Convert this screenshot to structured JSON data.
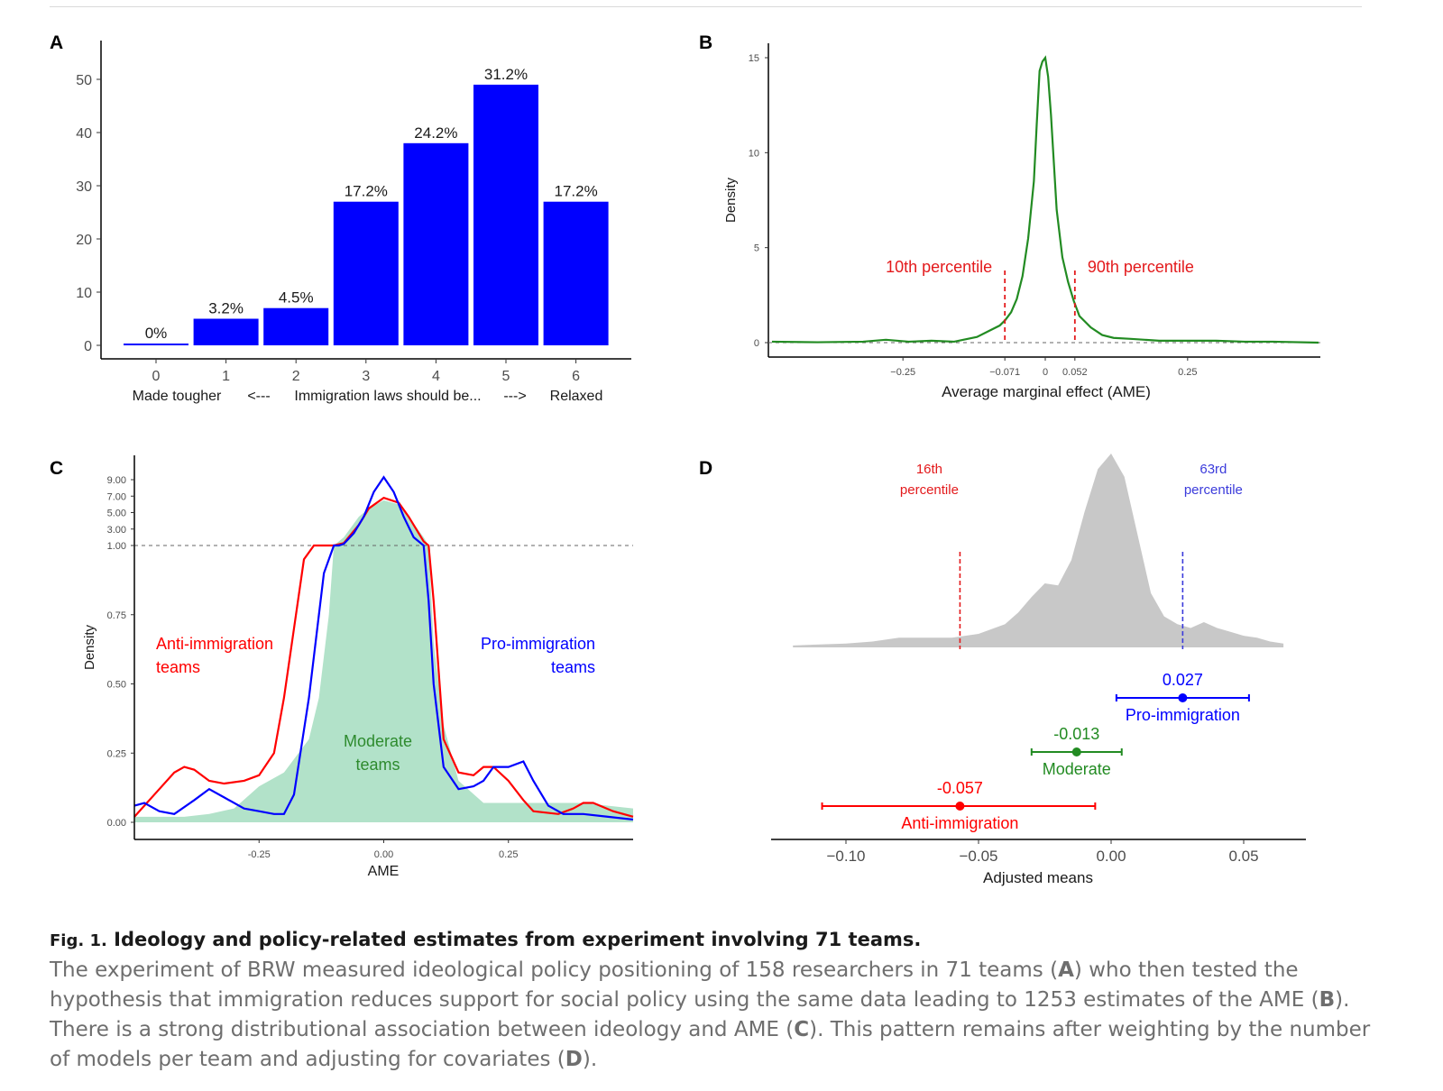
{
  "panels": [
    {
      "letter": "A",
      "chart_data": {
        "type": "bar",
        "categories": [
          "0",
          "1",
          "2",
          "3",
          "4",
          "5",
          "6"
        ],
        "values": [
          0,
          5,
          7,
          27,
          38,
          49,
          27
        ],
        "data_labels": [
          "0%",
          "3.2%",
          "4.5%",
          "17.2%",
          "24.2%",
          "31.2%",
          "17.2%"
        ],
        "bar_color": "#0000ff",
        "ylim": [
          0,
          55
        ],
        "yticks": [
          0,
          10,
          20,
          30,
          40,
          50
        ],
        "xlabel_parts": [
          "Made tougher",
          "<---",
          "Immigration laws should be...",
          "--->",
          "Relaxed"
        ]
      }
    },
    {
      "letter": "B",
      "chart_data": {
        "type": "line",
        "ylabel": "Density",
        "xlabel": "Average marginal effect (AME)",
        "xlim": [
          -0.48,
          0.48
        ],
        "ylim": [
          0,
          15.5
        ],
        "yticks": [
          0,
          5,
          10,
          15
        ],
        "xticks": [
          -0.25,
          -0.071,
          0,
          0.052,
          0.25
        ],
        "xtick_labels": [
          "−0.25",
          "−0.071",
          "0",
          "0.052",
          "0.25"
        ],
        "series": [
          {
            "name": "Density",
            "color": "#228b22",
            "x": [
              -0.48,
              -0.4,
              -0.32,
              -0.28,
              -0.24,
              -0.2,
              -0.16,
              -0.12,
              -0.1,
              -0.08,
              -0.07,
              -0.06,
              -0.05,
              -0.04,
              -0.03,
              -0.02,
              -0.015,
              -0.01,
              -0.005,
              0,
              0.005,
              0.01,
              0.015,
              0.02,
              0.03,
              0.04,
              0.05,
              0.06,
              0.08,
              0.1,
              0.12,
              0.15,
              0.2,
              0.25,
              0.3,
              0.35,
              0.4,
              0.48
            ],
            "y": [
              0.05,
              0.02,
              0.05,
              0.15,
              0.05,
              0.1,
              0.05,
              0.3,
              0.6,
              0.9,
              1.2,
              1.6,
              2.3,
              3.5,
              5.5,
              8.5,
              11.5,
              14.3,
              14.8,
              15.0,
              14.0,
              12.0,
              9.5,
              7.0,
              4.5,
              3.2,
              2.2,
              1.4,
              0.8,
              0.4,
              0.25,
              0.2,
              0.1,
              0.1,
              0.1,
              0.05,
              0.05,
              0.0
            ]
          }
        ],
        "reference_lines": [
          {
            "x": -0.071,
            "label": "10th percentile",
            "color": "#e31a1c"
          },
          {
            "x": 0.052,
            "label": "90th percentile",
            "color": "#e31a1c"
          }
        ]
      }
    },
    {
      "letter": "C",
      "chart_data": {
        "type": "area",
        "ylabel": "Density",
        "xlabel": "AME",
        "xlim": [
          -0.5,
          0.5
        ],
        "xticks": [
          -0.25,
          0,
          0.25
        ],
        "xtick_labels": [
          "-0.25",
          "0.00",
          "0.25"
        ],
        "yticks": [
          0,
          0.25,
          0.5,
          0.75,
          1,
          3,
          5,
          7,
          9
        ],
        "ytick_labels": [
          "0.00",
          "0.25",
          "0.50",
          "0.75",
          "1.00",
          "3.00",
          "5.00",
          "7.00",
          "9.00"
        ],
        "axis_break_at": 1,
        "series": [
          {
            "name": "Moderate teams",
            "color": "#b2e2c9",
            "x": [
              -0.5,
              -0.45,
              -0.4,
              -0.35,
              -0.3,
              -0.25,
              -0.2,
              -0.15,
              -0.13,
              -0.11,
              -0.1,
              -0.08,
              -0.05,
              -0.03,
              0,
              0.03,
              0.05,
              0.08,
              0.09,
              0.1,
              0.12,
              0.15,
              0.2,
              0.25,
              0.3,
              0.35,
              0.4,
              0.45,
              0.5
            ],
            "y": [
              0.02,
              0.02,
              0.02,
              0.03,
              0.05,
              0.13,
              0.18,
              0.3,
              0.45,
              0.75,
              1.0,
              2.0,
              4.5,
              5.5,
              6.5,
              6.0,
              4.5,
              2.0,
              1.0,
              0.65,
              0.35,
              0.15,
              0.07,
              0.07,
              0.07,
              0.07,
              0.07,
              0.06,
              0.05
            ]
          },
          {
            "name": "Anti-immigration teams",
            "color": "#ff0000",
            "x": [
              -0.5,
              -0.46,
              -0.42,
              -0.4,
              -0.38,
              -0.35,
              -0.32,
              -0.28,
              -0.25,
              -0.22,
              -0.2,
              -0.18,
              -0.16,
              -0.14,
              -0.13,
              -0.1,
              -0.08,
              -0.05,
              -0.03,
              0,
              0.03,
              0.05,
              0.08,
              0.09,
              0.1,
              0.12,
              0.15,
              0.18,
              0.2,
              0.22,
              0.25,
              0.28,
              0.3,
              0.35,
              0.38,
              0.4,
              0.42,
              0.46,
              0.5
            ],
            "y": [
              0.02,
              0.1,
              0.18,
              0.2,
              0.19,
              0.15,
              0.14,
              0.15,
              0.17,
              0.25,
              0.45,
              0.7,
              0.95,
              1.0,
              1.0,
              1.0,
              1.3,
              3.5,
              5.5,
              6.8,
              6.2,
              4.5,
              1.5,
              1.0,
              0.8,
              0.3,
              0.18,
              0.17,
              0.2,
              0.2,
              0.15,
              0.08,
              0.04,
              0.03,
              0.05,
              0.07,
              0.07,
              0.04,
              0.02
            ]
          },
          {
            "name": "Pro-immigration teams",
            "color": "#0000ff",
            "x": [
              -0.5,
              -0.48,
              -0.45,
              -0.42,
              -0.38,
              -0.35,
              -0.32,
              -0.28,
              -0.25,
              -0.22,
              -0.2,
              -0.18,
              -0.15,
              -0.12,
              -0.1,
              -0.09,
              -0.08,
              -0.06,
              -0.04,
              -0.02,
              0,
              0.02,
              0.04,
              0.06,
              0.08,
              0.09,
              0.1,
              0.12,
              0.15,
              0.18,
              0.2,
              0.22,
              0.25,
              0.28,
              0.3,
              0.33,
              0.36,
              0.4,
              0.45,
              0.5
            ],
            "y": [
              0.06,
              0.07,
              0.04,
              0.03,
              0.08,
              0.12,
              0.09,
              0.05,
              0.04,
              0.03,
              0.03,
              0.1,
              0.45,
              0.9,
              1.0,
              1.0,
              1.2,
              2.5,
              4.5,
              7.5,
              9.3,
              7.5,
              4.5,
              2.0,
              1.0,
              0.8,
              0.5,
              0.2,
              0.12,
              0.13,
              0.15,
              0.2,
              0.2,
              0.22,
              0.15,
              0.06,
              0.03,
              0.03,
              0.02,
              0.01
            ]
          }
        ],
        "annotations": [
          {
            "text_lines": [
              "Anti-immigration",
              "teams"
            ],
            "color": "#ff0000"
          },
          {
            "text_lines": [
              "Pro-immigration",
              "teams"
            ],
            "color": "#0000ff"
          },
          {
            "text_lines": [
              "Moderate",
              "teams"
            ],
            "color": "#2e8b2e"
          }
        ]
      }
    },
    {
      "letter": "D",
      "chart_data": {
        "type": "scatter",
        "xlabel": "Adjusted means",
        "xlim": [
          -0.13,
          0.075
        ],
        "xticks": [
          -0.1,
          -0.05,
          0,
          0.05
        ],
        "xtick_labels": [
          "−0.10",
          "−0.05",
          "0.00",
          "0.05"
        ],
        "density_color": "#c8c8c8",
        "density_x": [
          -0.12,
          -0.11,
          -0.1,
          -0.09,
          -0.08,
          -0.07,
          -0.06,
          -0.05,
          -0.04,
          -0.035,
          -0.03,
          -0.025,
          -0.02,
          -0.015,
          -0.01,
          -0.005,
          0,
          0.005,
          0.01,
          0.015,
          0.02,
          0.025,
          0.03,
          0.035,
          0.04,
          0.045,
          0.05,
          0.055,
          0.06,
          0.065
        ],
        "density_y": [
          0.01,
          0.015,
          0.02,
          0.03,
          0.05,
          0.05,
          0.05,
          0.07,
          0.12,
          0.18,
          0.26,
          0.33,
          0.32,
          0.45,
          0.7,
          0.92,
          1.0,
          0.88,
          0.58,
          0.28,
          0.16,
          0.12,
          0.1,
          0.13,
          0.1,
          0.08,
          0.06,
          0.05,
          0.03,
          0.02
        ],
        "reference_lines": [
          {
            "x": -0.057,
            "label_lines": [
              "16th",
              "percentile"
            ],
            "color": "#e31a1c"
          },
          {
            "x": 0.027,
            "label_lines": [
              "63rd",
              "percentile"
            ],
            "color": "#3b3bdb"
          }
        ],
        "points": [
          {
            "name": "Pro-immigration",
            "estimate": 0.027,
            "label": "0.027",
            "ci": [
              0.002,
              0.052
            ],
            "color": "#0000ff"
          },
          {
            "name": "Moderate",
            "estimate": -0.013,
            "label": "-0.013",
            "ci": [
              -0.03,
              0.004
            ],
            "color": "#228b22"
          },
          {
            "name": "Anti-immigration",
            "estimate": -0.057,
            "label": "-0.057",
            "ci": [
              -0.109,
              -0.006
            ],
            "color": "#ff0000"
          }
        ]
      }
    }
  ],
  "caption": {
    "fig_label": "Fig. 1.",
    "title": "Ideology and policy-related estimates from experiment involving 71 teams.",
    "body_segments": [
      "The experiment of BRW measured ideological policy positioning of 158 researchers in 71 teams (",
      "A",
      ") who then tested the hypothesis that immigration reduces support for social policy using the same data leading to 1253 estimates of the AME (",
      "B",
      "). There is a strong distributional association between ideology and AME (",
      "C",
      "). This pattern remains after weighting by the number of models per team and adjusting for covariates (",
      "D",
      ")."
    ]
  }
}
